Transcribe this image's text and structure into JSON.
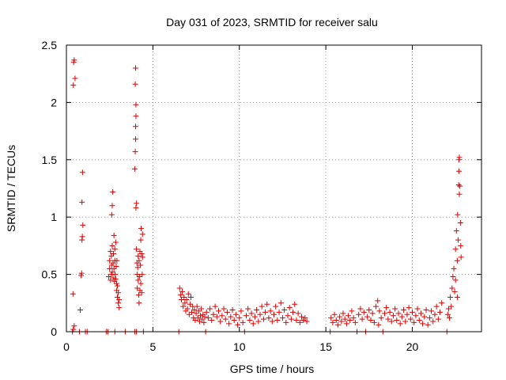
{
  "chart_data": {
    "type": "scatter",
    "title": "Day 031 of 2023, SRMTID for receiver salu",
    "xlabel": "GPS time / hours",
    "ylabel": "SRMTID / TECUs",
    "xlim": [
      0,
      24
    ],
    "ylim": [
      0,
      2.5
    ],
    "xticks": [
      0,
      5,
      10,
      15,
      20
    ],
    "xtick_labels": [
      "0",
      "5",
      "10",
      "15",
      "20"
    ],
    "yticks": [
      0,
      0.5,
      1,
      1.5,
      2,
      2.5
    ],
    "ytick_labels": [
      "0",
      "0.5",
      "1",
      "1.5",
      "2",
      "2.5"
    ],
    "grid": true,
    "marker": "+",
    "color": "#e00000",
    "series": [
      {
        "name": "SRMTID",
        "points": [
          [
            0.35,
            0.0
          ],
          [
            0.4,
            0.02
          ],
          [
            0.45,
            0.05
          ],
          [
            0.38,
            0.33
          ],
          [
            0.4,
            2.15
          ],
          [
            0.42,
            2.35
          ],
          [
            0.45,
            2.37
          ],
          [
            0.5,
            2.21
          ],
          [
            0.75,
            0.0
          ],
          [
            0.8,
            0.19
          ],
          [
            0.85,
            0.49
          ],
          [
            0.88,
            0.51
          ],
          [
            0.9,
            0.8
          ],
          [
            0.92,
            0.83
          ],
          [
            0.95,
            0.93
          ],
          [
            0.9,
            1.13
          ],
          [
            0.93,
            1.39
          ],
          [
            1.1,
            0.0
          ],
          [
            1.2,
            0.0
          ],
          [
            2.3,
            0.0
          ],
          [
            2.4,
            0.0
          ],
          [
            2.45,
            0.48
          ],
          [
            2.5,
            0.55
          ],
          [
            2.5,
            0.62
          ],
          [
            2.55,
            0.7
          ],
          [
            2.55,
            0.45
          ],
          [
            2.6,
            0.5
          ],
          [
            2.6,
            0.66
          ],
          [
            2.62,
            0.58
          ],
          [
            2.65,
            0.75
          ],
          [
            2.65,
            0.52
          ],
          [
            2.7,
            0.47
          ],
          [
            2.7,
            0.6
          ],
          [
            2.72,
            0.68
          ],
          [
            2.75,
            0.84
          ],
          [
            2.75,
            0.55
          ],
          [
            2.78,
            0.44
          ],
          [
            2.8,
            0.62
          ],
          [
            2.8,
            0.72
          ],
          [
            2.82,
            0.5
          ],
          [
            2.85,
            0.46
          ],
          [
            2.85,
            0.78
          ],
          [
            2.88,
            0.57
          ],
          [
            2.9,
            0.42
          ],
          [
            2.9,
            0.36
          ],
          [
            2.92,
            0.62
          ],
          [
            2.95,
            0.3
          ],
          [
            2.95,
            0.4
          ],
          [
            3.0,
            0.25
          ],
          [
            3.0,
            0.34
          ],
          [
            3.05,
            0.21
          ],
          [
            3.05,
            0.28
          ],
          [
            2.62,
            1.02
          ],
          [
            2.65,
            1.1
          ],
          [
            2.68,
            1.22
          ],
          [
            2.8,
            0.0
          ],
          [
            3.4,
            0.0
          ],
          [
            3.95,
            0.0
          ],
          [
            4.05,
            0.0
          ],
          [
            3.95,
            1.42
          ],
          [
            3.98,
            1.57
          ],
          [
            4.0,
            1.68
          ],
          [
            4.0,
            1.79
          ],
          [
            4.02,
            1.88
          ],
          [
            4.02,
            1.98
          ],
          [
            3.98,
            2.16
          ],
          [
            4.0,
            2.3
          ],
          [
            4.02,
            1.08
          ],
          [
            4.05,
            1.12
          ],
          [
            4.05,
            0.72
          ],
          [
            4.08,
            0.6
          ],
          [
            4.1,
            0.5
          ],
          [
            4.1,
            0.38
          ],
          [
            4.12,
            0.56
          ],
          [
            4.15,
            0.66
          ],
          [
            4.15,
            0.45
          ],
          [
            4.18,
            0.32
          ],
          [
            4.2,
            0.62
          ],
          [
            4.2,
            0.25
          ],
          [
            4.22,
            0.48
          ],
          [
            4.25,
            0.7
          ],
          [
            4.25,
            0.36
          ],
          [
            4.28,
            0.58
          ],
          [
            4.3,
            0.42
          ],
          [
            4.3,
            0.8
          ],
          [
            4.32,
            0.9
          ],
          [
            4.35,
            0.68
          ],
          [
            4.35,
            0.34
          ],
          [
            4.38,
            0.5
          ],
          [
            4.4,
            0.65
          ],
          [
            4.4,
            0.85
          ],
          [
            4.45,
            0.0
          ],
          [
            6.5,
            0.0
          ],
          [
            6.55,
            0.38
          ],
          [
            6.6,
            0.32
          ],
          [
            6.65,
            0.28
          ],
          [
            6.7,
            0.35
          ],
          [
            6.75,
            0.22
          ],
          [
            6.8,
            0.3
          ],
          [
            6.85,
            0.25
          ],
          [
            6.9,
            0.18
          ],
          [
            6.95,
            0.28
          ],
          [
            7.0,
            0.2
          ],
          [
            7.05,
            0.33
          ],
          [
            7.1,
            0.15
          ],
          [
            7.15,
            0.24
          ],
          [
            7.2,
            0.3
          ],
          [
            7.25,
            0.17
          ],
          [
            7.3,
            0.22
          ],
          [
            7.35,
            0.12
          ],
          [
            7.4,
            0.19
          ],
          [
            7.45,
            0.1
          ],
          [
            7.5,
            0.16
          ],
          [
            7.55,
            0.22
          ],
          [
            7.6,
            0.12
          ],
          [
            7.65,
            0.18
          ],
          [
            7.7,
            0.09
          ],
          [
            7.75,
            0.14
          ],
          [
            7.8,
            0.2
          ],
          [
            7.85,
            0.11
          ],
          [
            7.9,
            0.15
          ],
          [
            7.95,
            0.08
          ],
          [
            8.0,
            0.13
          ],
          [
            8.05,
            0.0
          ],
          [
            8.1,
            0.17
          ],
          [
            8.2,
            0.12
          ],
          [
            8.3,
            0.2
          ],
          [
            8.4,
            0.1
          ],
          [
            8.5,
            0.15
          ],
          [
            8.6,
            0.22
          ],
          [
            8.7,
            0.13
          ],
          [
            8.8,
            0.18
          ],
          [
            8.9,
            0.09
          ],
          [
            9.0,
            0.14
          ],
          [
            9.1,
            0.2
          ],
          [
            9.2,
            0.11
          ],
          [
            9.3,
            0.17
          ],
          [
            9.4,
            0.07
          ],
          [
            9.5,
            0.13
          ],
          [
            9.6,
            0.19
          ],
          [
            9.7,
            0.1
          ],
          [
            9.8,
            0.15
          ],
          [
            9.9,
            0.06
          ],
          [
            10.0,
            0.12
          ],
          [
            10.1,
            0.18
          ],
          [
            10.2,
            0.08
          ],
          [
            10.3,
            0.0
          ],
          [
            10.4,
            0.14
          ],
          [
            10.5,
            0.2
          ],
          [
            10.6,
            0.1
          ],
          [
            10.7,
            0.16
          ],
          [
            10.8,
            0.07
          ],
          [
            10.9,
            0.13
          ],
          [
            11.0,
            0.19
          ],
          [
            11.1,
            0.09
          ],
          [
            11.2,
            0.15
          ],
          [
            11.3,
            0.22
          ],
          [
            11.4,
            0.11
          ],
          [
            11.5,
            0.17
          ],
          [
            11.6,
            0.24
          ],
          [
            11.7,
            0.12
          ],
          [
            11.8,
            0.18
          ],
          [
            11.9,
            0.09
          ],
          [
            12.0,
            0.15
          ],
          [
            12.1,
            0.22
          ],
          [
            12.2,
            0.1
          ],
          [
            12.3,
            0.17
          ],
          [
            12.4,
            0.25
          ],
          [
            12.5,
            0.12
          ],
          [
            12.6,
            0.19
          ],
          [
            12.7,
            0.08
          ],
          [
            12.8,
            0.14
          ],
          [
            12.9,
            0.21
          ],
          [
            13.0,
            0.11
          ],
          [
            13.1,
            0.17
          ],
          [
            13.2,
            0.24
          ],
          [
            13.3,
            0.1
          ],
          [
            13.4,
            0.16
          ],
          [
            13.5,
            0.08
          ],
          [
            13.6,
            0.13
          ],
          [
            13.7,
            0.1
          ],
          [
            13.8,
            0.12
          ],
          [
            13.9,
            0.09
          ],
          [
            15.25,
            0.0
          ],
          [
            15.3,
            0.12
          ],
          [
            15.4,
            0.08
          ],
          [
            15.5,
            0.15
          ],
          [
            15.6,
            0.1
          ],
          [
            15.7,
            0.06
          ],
          [
            15.8,
            0.13
          ],
          [
            15.9,
            0.09
          ],
          [
            16.0,
            0.16
          ],
          [
            16.1,
            0.11
          ],
          [
            16.2,
            0.07
          ],
          [
            16.3,
            0.14
          ],
          [
            16.4,
            0.1
          ],
          [
            16.5,
            0.18
          ],
          [
            16.6,
            0.12
          ],
          [
            16.7,
            0.08
          ],
          [
            16.8,
            0.0
          ],
          [
            16.9,
            0.15
          ],
          [
            17.0,
            0.2
          ],
          [
            17.1,
            0.11
          ],
          [
            17.2,
            0.17
          ],
          [
            17.3,
            0.0
          ],
          [
            17.4,
            0.13
          ],
          [
            17.5,
            0.19
          ],
          [
            17.6,
            0.1
          ],
          [
            17.7,
            0.16
          ],
          [
            17.8,
            0.08
          ],
          [
            17.9,
            0.22
          ],
          [
            18.0,
            0.27
          ],
          [
            18.05,
            0.06
          ],
          [
            18.1,
            0.18
          ],
          [
            18.2,
            0.12
          ],
          [
            18.3,
            0.0
          ],
          [
            18.4,
            0.16
          ],
          [
            18.5,
            0.21
          ],
          [
            18.6,
            0.11
          ],
          [
            18.7,
            0.17
          ],
          [
            18.8,
            0.09
          ],
          [
            18.9,
            0.14
          ],
          [
            19.0,
            0.2
          ],
          [
            19.1,
            0.1
          ],
          [
            19.2,
            0.16
          ],
          [
            19.3,
            0.07
          ],
          [
            19.4,
            0.13
          ],
          [
            19.5,
            0.19
          ],
          [
            19.6,
            0.09
          ],
          [
            19.7,
            0.15
          ],
          [
            19.8,
            0.21
          ],
          [
            19.9,
            0.11
          ],
          [
            20.0,
            0.17
          ],
          [
            20.1,
            0.08
          ],
          [
            20.2,
            0.14
          ],
          [
            20.3,
            0.2
          ],
          [
            20.4,
            0.1
          ],
          [
            20.5,
            0.16
          ],
          [
            20.6,
            0.07
          ],
          [
            20.7,
            0.13
          ],
          [
            20.8,
            0.19
          ],
          [
            20.9,
            0.06
          ],
          [
            21.0,
            0.12
          ],
          [
            21.1,
            0.18
          ],
          [
            21.2,
            0.09
          ],
          [
            21.3,
            0.15
          ],
          [
            21.4,
            0.22
          ],
          [
            21.5,
            0.11
          ],
          [
            21.6,
            0.17
          ],
          [
            21.7,
            0.25
          ],
          [
            22.0,
            0.0
          ],
          [
            22.05,
            0.15
          ],
          [
            22.1,
            0.2
          ],
          [
            22.15,
            0.12
          ],
          [
            22.2,
            0.3
          ],
          [
            22.25,
            0.22
          ],
          [
            22.3,
            0.38
          ],
          [
            22.35,
            0.48
          ],
          [
            22.4,
            0.55
          ],
          [
            22.45,
            0.35
          ],
          [
            22.5,
            0.72
          ],
          [
            22.5,
            0.45
          ],
          [
            22.55,
            0.88
          ],
          [
            22.6,
            0.62
          ],
          [
            22.6,
            0.3
          ],
          [
            22.62,
            1.02
          ],
          [
            22.65,
            0.8
          ],
          [
            22.68,
            1.28
          ],
          [
            22.7,
            1.4
          ],
          [
            22.72,
            1.52
          ],
          [
            22.75,
            1.27
          ],
          [
            22.78,
            0.95
          ],
          [
            22.8,
            0.75
          ],
          [
            22.82,
            0.65
          ],
          [
            22.72,
            1.2
          ],
          [
            22.7,
            1.5
          ]
        ]
      }
    ]
  }
}
